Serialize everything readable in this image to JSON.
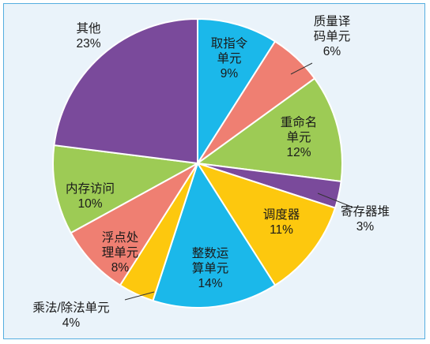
{
  "chart_data": {
    "type": "pie",
    "title": "",
    "unit": "%",
    "slices": [
      {
        "lines": [
          "取指令",
          "单元"
        ],
        "pct_label": "9%",
        "value": 9,
        "color": "#1bb8ea"
      },
      {
        "lines": [
          "质量译",
          "码单元"
        ],
        "pct_label": "6%",
        "value": 6,
        "color": "#ef7f72"
      },
      {
        "lines": [
          "重命名",
          "单元"
        ],
        "pct_label": "12%",
        "value": 12,
        "color": "#9dcb55"
      },
      {
        "lines": [
          "寄存器堆"
        ],
        "pct_label": "3%",
        "value": 3,
        "color": "#7a4a9b"
      },
      {
        "lines": [
          "调度器"
        ],
        "pct_label": "11%",
        "value": 11,
        "color": "#fdc80e"
      },
      {
        "lines": [
          "整数运",
          "算单元"
        ],
        "pct_label": "14%",
        "value": 14,
        "color": "#1bb8ea"
      },
      {
        "lines": [
          "乘法/除法单元"
        ],
        "pct_label": "4%",
        "value": 4,
        "color": "#fdc80e"
      },
      {
        "lines": [
          "浮点处",
          "理单元"
        ],
        "pct_label": "8%",
        "value": 8,
        "color": "#ef7f72"
      },
      {
        "lines": [
          "内存访问"
        ],
        "pct_label": "10%",
        "value": 10,
        "color": "#9dcb55"
      },
      {
        "lines": [
          "其他"
        ],
        "pct_label": "23%",
        "value": 23,
        "color": "#7a4a9b"
      }
    ]
  }
}
